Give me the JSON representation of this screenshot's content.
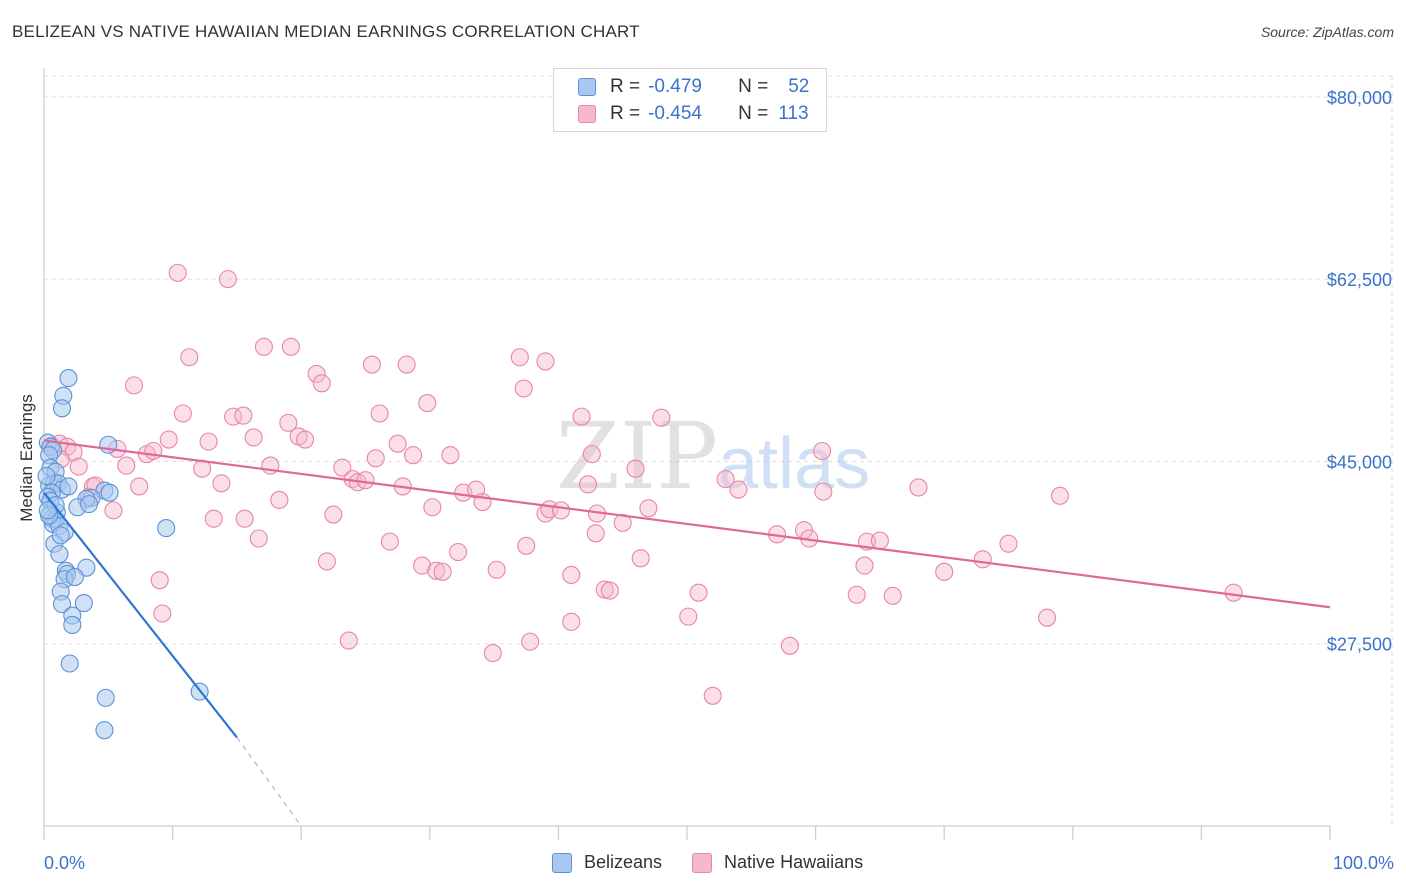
{
  "title": "BELIZEAN VS NATIVE HAWAIIAN MEDIAN EARNINGS CORRELATION CHART",
  "source": "Source: ZipAtlas.com",
  "watermark": {
    "zip": "ZIP",
    "atlas": "atlas"
  },
  "legend": {
    "r_label": "R =",
    "n_label": "N =",
    "rows": [
      {
        "name": "Belizeans",
        "r": "-0.479",
        "n": "52"
      },
      {
        "name": "Native Hawaiians",
        "r": "-0.454",
        "n": "113"
      }
    ]
  },
  "colors": {
    "blue_fill": "#a9c8ef",
    "blue_stroke": "#5b93d8",
    "blue_line": "#2e76d0",
    "pink_fill": "#f6b8cb",
    "pink_stroke": "#e886a5",
    "pink_line": "#e0679a",
    "axis_label": "#3a73c9",
    "grid": "#dddddd"
  },
  "chart_data": {
    "type": "scatter",
    "title": "BELIZEAN VS NATIVE HAWAIIAN MEDIAN EARNINGS CORRELATION CHART",
    "xlabel": "",
    "ylabel": "Median Earnings",
    "xlim": [
      0,
      100
    ],
    "ylim": [
      10000,
      82000
    ],
    "y_ticks": [
      27500,
      45000,
      62500,
      80000
    ],
    "y_tick_labels": [
      "$27,500",
      "$45,000",
      "$62,500",
      "$80,000"
    ],
    "x_tick_labels": [
      "0.0%",
      "100.0%"
    ],
    "series": [
      {
        "name": "Belizeans",
        "trend": {
          "x0": 0,
          "y0": 42000,
          "x1": 15,
          "y1": 18500,
          "dash_to_x": 20,
          "dash_to_y": 10000
        },
        "points": [
          [
            0.3,
            46800
          ],
          [
            0.5,
            46400
          ],
          [
            0.7,
            46100
          ],
          [
            0.4,
            45600
          ],
          [
            0.5,
            44400
          ],
          [
            0.9,
            44000
          ],
          [
            0.4,
            42700
          ],
          [
            0.8,
            42900
          ],
          [
            1.1,
            42900
          ],
          [
            1.4,
            42300
          ],
          [
            0.6,
            42000
          ],
          [
            0.3,
            41600
          ],
          [
            1.0,
            40100
          ],
          [
            0.6,
            39500
          ],
          [
            0.9,
            39400
          ],
          [
            0.7,
            39000
          ],
          [
            1.2,
            38800
          ],
          [
            1.6,
            38200
          ],
          [
            0.8,
            37100
          ],
          [
            1.2,
            36100
          ],
          [
            1.7,
            34500
          ],
          [
            1.8,
            34200
          ],
          [
            1.6,
            33700
          ],
          [
            1.3,
            32500
          ],
          [
            1.4,
            31300
          ],
          [
            2.2,
            30200
          ],
          [
            3.3,
            34800
          ],
          [
            3.1,
            31400
          ],
          [
            2.2,
            29300
          ],
          [
            2.0,
            25600
          ],
          [
            4.7,
            42200
          ],
          [
            5.1,
            42000
          ],
          [
            3.7,
            41500
          ],
          [
            3.3,
            41400
          ],
          [
            2.6,
            40600
          ],
          [
            5.0,
            46600
          ],
          [
            1.9,
            53000
          ],
          [
            1.5,
            51300
          ],
          [
            1.4,
            50100
          ],
          [
            9.5,
            38600
          ],
          [
            12.1,
            22900
          ],
          [
            4.8,
            22300
          ],
          [
            4.7,
            19200
          ],
          [
            0.2,
            43600
          ],
          [
            0.5,
            41200
          ],
          [
            0.9,
            40800
          ],
          [
            0.4,
            39800
          ],
          [
            1.3,
            37900
          ],
          [
            2.4,
            33900
          ],
          [
            0.3,
            40300
          ],
          [
            1.9,
            42600
          ],
          [
            3.5,
            40900
          ]
        ]
      },
      {
        "name": "Native Hawaiians",
        "trend": {
          "x0": 0,
          "y0": 47000,
          "x1": 100,
          "y1": 31000
        },
        "points": [
          [
            0.6,
            46500
          ],
          [
            1.2,
            46700
          ],
          [
            1.8,
            46400
          ],
          [
            2.3,
            45900
          ],
          [
            1.3,
            45200
          ],
          [
            2.7,
            44500
          ],
          [
            3.8,
            42600
          ],
          [
            3.5,
            41600
          ],
          [
            5.4,
            40300
          ],
          [
            4.0,
            42700
          ],
          [
            5.7,
            46200
          ],
          [
            6.4,
            44600
          ],
          [
            7.0,
            52300
          ],
          [
            7.4,
            42600
          ],
          [
            8.0,
            45700
          ],
          [
            8.5,
            46000
          ],
          [
            9.0,
            33600
          ],
          [
            9.2,
            30400
          ],
          [
            9.7,
            47100
          ],
          [
            10.4,
            63100
          ],
          [
            10.8,
            49600
          ],
          [
            11.3,
            55000
          ],
          [
            12.3,
            44300
          ],
          [
            12.8,
            46900
          ],
          [
            13.2,
            39500
          ],
          [
            13.8,
            42900
          ],
          [
            14.3,
            62500
          ],
          [
            14.7,
            49300
          ],
          [
            15.5,
            49400
          ],
          [
            15.6,
            39500
          ],
          [
            16.3,
            47300
          ],
          [
            16.7,
            37600
          ],
          [
            17.1,
            56000
          ],
          [
            17.6,
            44600
          ],
          [
            18.3,
            41300
          ],
          [
            19.0,
            48700
          ],
          [
            19.2,
            56000
          ],
          [
            19.8,
            47400
          ],
          [
            20.3,
            47100
          ],
          [
            21.2,
            53400
          ],
          [
            21.6,
            52500
          ],
          [
            22.0,
            35400
          ],
          [
            22.5,
            39900
          ],
          [
            23.2,
            44400
          ],
          [
            23.7,
            27800
          ],
          [
            24.0,
            43300
          ],
          [
            24.4,
            43000
          ],
          [
            25.0,
            43200
          ],
          [
            25.5,
            54300
          ],
          [
            25.8,
            45300
          ],
          [
            26.1,
            49600
          ],
          [
            26.9,
            37300
          ],
          [
            27.5,
            46700
          ],
          [
            27.9,
            42600
          ],
          [
            28.2,
            54300
          ],
          [
            28.7,
            45600
          ],
          [
            29.4,
            35000
          ],
          [
            29.8,
            50600
          ],
          [
            30.2,
            40600
          ],
          [
            30.5,
            34500
          ],
          [
            31.0,
            34400
          ],
          [
            31.6,
            45600
          ],
          [
            32.2,
            36300
          ],
          [
            32.6,
            42000
          ],
          [
            33.6,
            42300
          ],
          [
            34.1,
            41100
          ],
          [
            34.9,
            26600
          ],
          [
            35.2,
            34600
          ],
          [
            37.0,
            55000
          ],
          [
            37.3,
            52000
          ],
          [
            37.8,
            27700
          ],
          [
            37.5,
            36900
          ],
          [
            39.0,
            40000
          ],
          [
            39.3,
            40400
          ],
          [
            39.0,
            54600
          ],
          [
            40.2,
            40300
          ],
          [
            41.0,
            34100
          ],
          [
            41.0,
            29600
          ],
          [
            41.8,
            49300
          ],
          [
            42.3,
            42800
          ],
          [
            42.6,
            45700
          ],
          [
            43.0,
            40000
          ],
          [
            42.9,
            38100
          ],
          [
            43.6,
            32700
          ],
          [
            44.0,
            32600
          ],
          [
            45.0,
            39100
          ],
          [
            46.0,
            44300
          ],
          [
            46.4,
            35700
          ],
          [
            47.0,
            40500
          ],
          [
            48.0,
            49200
          ],
          [
            50.1,
            30100
          ],
          [
            50.9,
            32400
          ],
          [
            52.0,
            22500
          ],
          [
            53.0,
            43300
          ],
          [
            54.0,
            42300
          ],
          [
            57.0,
            38000
          ],
          [
            58.0,
            27300
          ],
          [
            59.1,
            38400
          ],
          [
            59.5,
            37600
          ],
          [
            60.6,
            42100
          ],
          [
            60.5,
            46000
          ],
          [
            63.2,
            32200
          ],
          [
            63.8,
            35000
          ],
          [
            64.0,
            37300
          ],
          [
            65.0,
            37400
          ],
          [
            66.0,
            32100
          ],
          [
            68.0,
            42500
          ],
          [
            70.0,
            34400
          ],
          [
            73.0,
            35600
          ],
          [
            75.0,
            37100
          ],
          [
            78.0,
            30000
          ],
          [
            79.0,
            41700
          ],
          [
            92.5,
            32400
          ]
        ]
      }
    ]
  }
}
